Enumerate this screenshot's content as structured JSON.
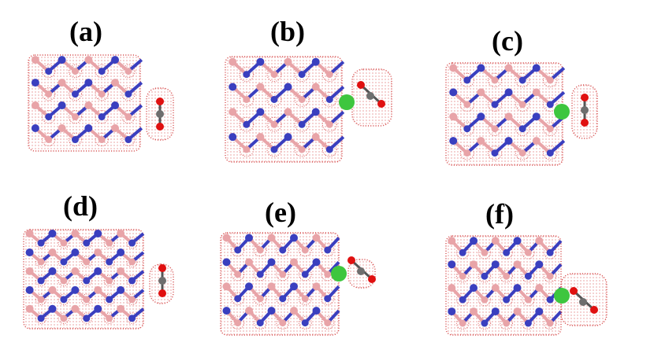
{
  "panels": [
    {
      "id": "a",
      "label": "(a)",
      "variant": "pristine",
      "co2_orientation": "vertical"
    },
    {
      "id": "b",
      "label": "(b)",
      "variant": "doped",
      "co2_orientation": "tilted"
    },
    {
      "id": "c",
      "label": "(c)",
      "variant": "doped",
      "co2_orientation": "vertical"
    },
    {
      "id": "d",
      "label": "(d)",
      "variant": "pristine",
      "co2_orientation": "vertical"
    },
    {
      "id": "e",
      "label": "(e)",
      "variant": "doped",
      "co2_orientation": "tilted"
    },
    {
      "id": "f",
      "label": "(f)",
      "variant": "doped",
      "co2_orientation": "tilted"
    }
  ],
  "colors": {
    "boron": "#e8a4a8",
    "nitrogen": "#3a3fbf",
    "dopant": "#3ec63e",
    "carbon": "#6e6e6e",
    "oxygen": "#e01010",
    "density": "#d23a3a"
  }
}
